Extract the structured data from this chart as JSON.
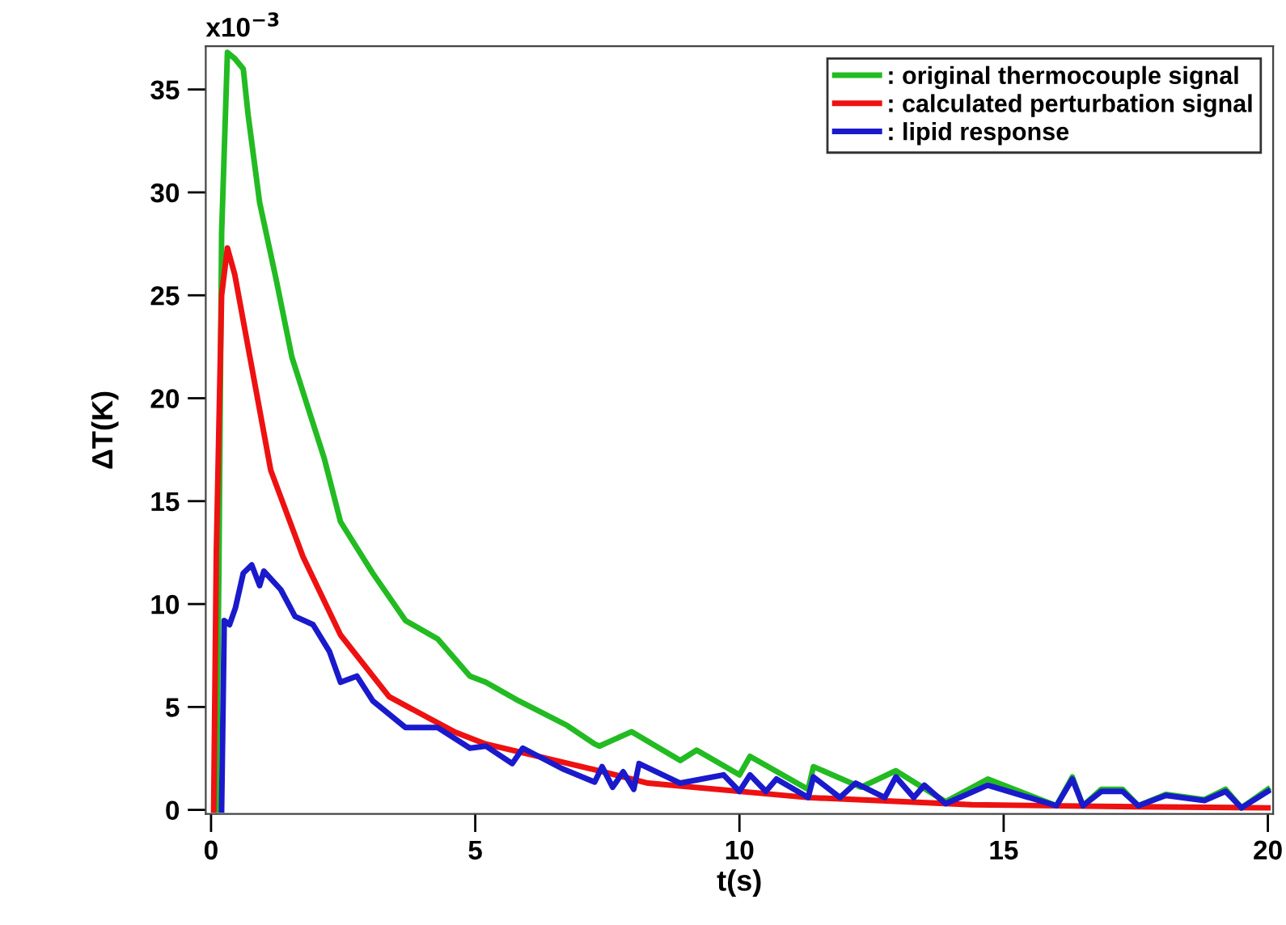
{
  "chart_data": {
    "type": "line",
    "xlabel": "t(s)",
    "ylabel": "ΔT(K)",
    "annotations": [
      "x10$^{−3}$"
    ],
    "xlim": [
      -0.1,
      20.1
    ],
    "ylim": [
      -0.2,
      37.1
    ],
    "xticks": [
      0,
      5,
      10,
      15,
      20
    ],
    "yticks": [
      0,
      5,
      10,
      15,
      20,
      25,
      30,
      35
    ],
    "grid": false,
    "legend": "top right",
    "marker": "none",
    "line_style": "solid",
    "series": [
      {
        "name": ": original thermocouple signal",
        "color": "#22bb22",
        "x": [
          0.1,
          0.15,
          0.2,
          0.31,
          0.45,
          0.61,
          0.7,
          0.92,
          1.23,
          1.53,
          1.84,
          2.14,
          2.45,
          3.06,
          3.68,
          4.29,
          4.9,
          5.2,
          5.82,
          6.74,
          7.26,
          7.35,
          7.96,
          8.88,
          9.19,
          10.0,
          10.2,
          11.3,
          11.4,
          12.3,
          12.96,
          13.9,
          14.7,
          16.0,
          16.3,
          16.5,
          16.85,
          17.25,
          17.55,
          18.07,
          18.8,
          19.2,
          19.5,
          20.0
        ],
        "values": [
          0,
          12,
          28,
          36.8,
          36.5,
          36,
          33.8,
          29.5,
          25.8,
          22,
          19.5,
          17.1,
          14.0,
          11.5,
          9.2,
          8.3,
          6.5,
          6.2,
          5.3,
          4.1,
          3.2,
          3.1,
          3.8,
          2.4,
          2.9,
          1.7,
          2.6,
          1.0,
          2.1,
          1.1,
          1.9,
          0.4,
          1.5,
          0.2,
          1.6,
          0.2,
          1.0,
          1.0,
          0.2,
          0.75,
          0.5,
          1.0,
          0.1,
          1.0
        ]
      },
      {
        "name": ": calculated perturbation signal",
        "color": "#ee1111",
        "x": [
          0.05,
          0.1,
          0.2,
          0.31,
          0.45,
          0.7,
          1.13,
          1.74,
          2.45,
          3.37,
          4.6,
          5.2,
          7.35,
          8.27,
          11.3,
          14.4,
          17.5,
          20.0
        ],
        "values": [
          0,
          12.5,
          25,
          27.3,
          26,
          22.5,
          16.5,
          12.3,
          8.5,
          5.5,
          3.8,
          3.2,
          1.9,
          1.3,
          0.6,
          0.25,
          0.15,
          0.1
        ]
      },
      {
        "name": ": lipid response",
        "color": "#1a1acc",
        "x": [
          0.2,
          0.25,
          0.35,
          0.46,
          0.61,
          0.77,
          0.92,
          1.0,
          1.32,
          1.59,
          1.93,
          2.24,
          2.45,
          2.76,
          3.06,
          3.68,
          4.29,
          4.9,
          5.2,
          5.7,
          5.9,
          6.65,
          7.26,
          7.4,
          7.6,
          7.8,
          8.0,
          8.1,
          8.88,
          9.7,
          10.0,
          10.2,
          10.5,
          10.7,
          11.3,
          11.4,
          11.9,
          12.2,
          12.75,
          12.96,
          13.3,
          13.5,
          13.9,
          14.7,
          16.0,
          16.3,
          16.5,
          16.85,
          17.25,
          17.55,
          18.07,
          18.8,
          19.2,
          19.5,
          20.0
        ],
        "values": [
          0,
          9.2,
          9.0,
          9.8,
          11.5,
          11.9,
          10.9,
          11.6,
          10.7,
          9.4,
          9.0,
          7.7,
          6.2,
          6.5,
          5.3,
          4.0,
          4.0,
          3.0,
          3.1,
          2.25,
          3.0,
          2.0,
          1.35,
          2.1,
          1.1,
          1.85,
          1.0,
          2.25,
          1.3,
          1.7,
          0.9,
          1.7,
          0.9,
          1.5,
          0.6,
          1.6,
          0.6,
          1.3,
          0.6,
          1.6,
          0.6,
          1.2,
          0.3,
          1.2,
          0.2,
          1.5,
          0.2,
          0.9,
          0.9,
          0.2,
          0.7,
          0.45,
          0.9,
          0.1,
          0.9
        ]
      }
    ]
  }
}
